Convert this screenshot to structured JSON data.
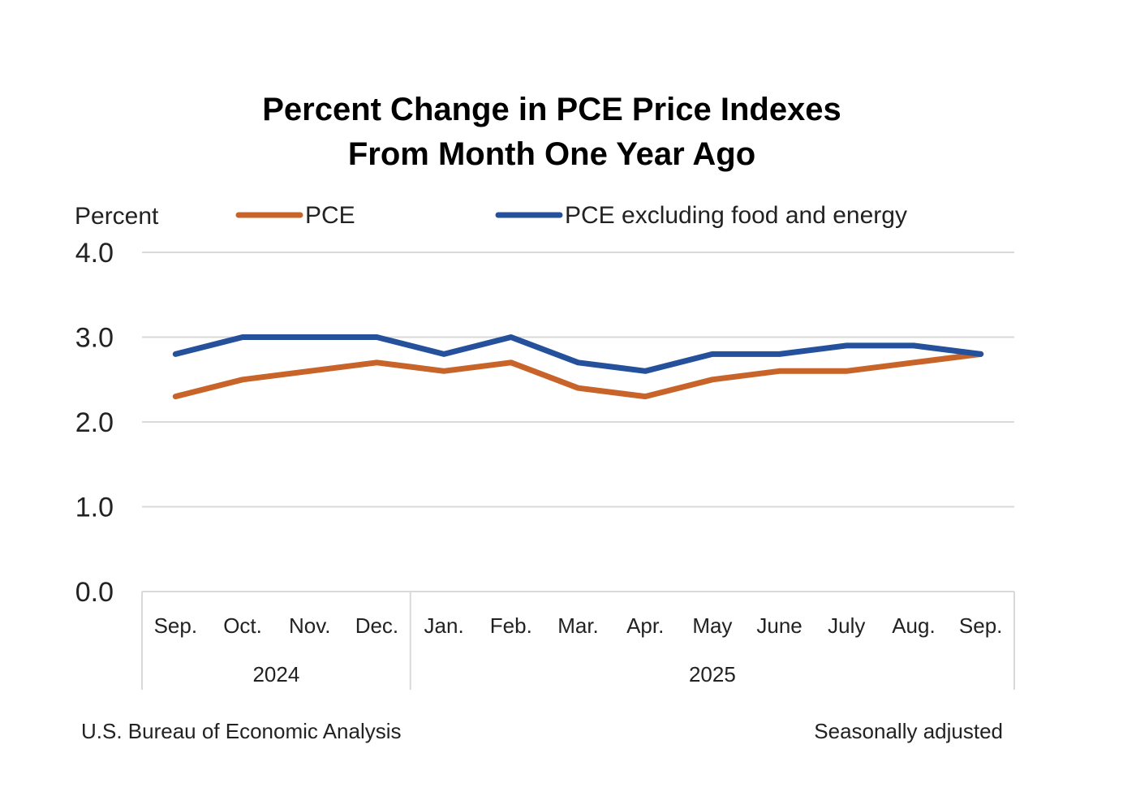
{
  "chart_data": {
    "type": "line",
    "title_lines": [
      "Percent Change in PCE Price Indexes",
      "From Month One Year Ago"
    ],
    "ylabel": "Percent",
    "ylim": [
      0,
      4
    ],
    "yticks": [
      "0.0",
      "1.0",
      "2.0",
      "3.0",
      "4.0"
    ],
    "ytick_values": [
      0,
      1,
      2,
      3,
      4
    ],
    "categories": [
      "Sep.",
      "Oct.",
      "Nov.",
      "Dec.",
      "Jan.",
      "Feb.",
      "Mar.",
      "Apr.",
      "May",
      "June",
      "July",
      "Aug.",
      "Sep."
    ],
    "groups": [
      {
        "label": "2024",
        "count": 4
      },
      {
        "label": "2025",
        "count": 9
      }
    ],
    "series": [
      {
        "name": "PCE",
        "color": "#C8642A",
        "values": [
          2.3,
          2.5,
          2.6,
          2.7,
          2.6,
          2.7,
          2.4,
          2.3,
          2.5,
          2.6,
          2.6,
          2.7,
          2.8
        ]
      },
      {
        "name": "PCE excluding food and energy",
        "color": "#24509C",
        "values": [
          2.8,
          3.0,
          3.0,
          3.0,
          2.8,
          3.0,
          2.7,
          2.6,
          2.8,
          2.8,
          2.9,
          2.9,
          2.8
        ]
      }
    ],
    "grid": true,
    "legend": "top"
  },
  "footer": {
    "source": "U.S. Bureau of Economic Analysis",
    "note": "Seasonally adjusted"
  }
}
